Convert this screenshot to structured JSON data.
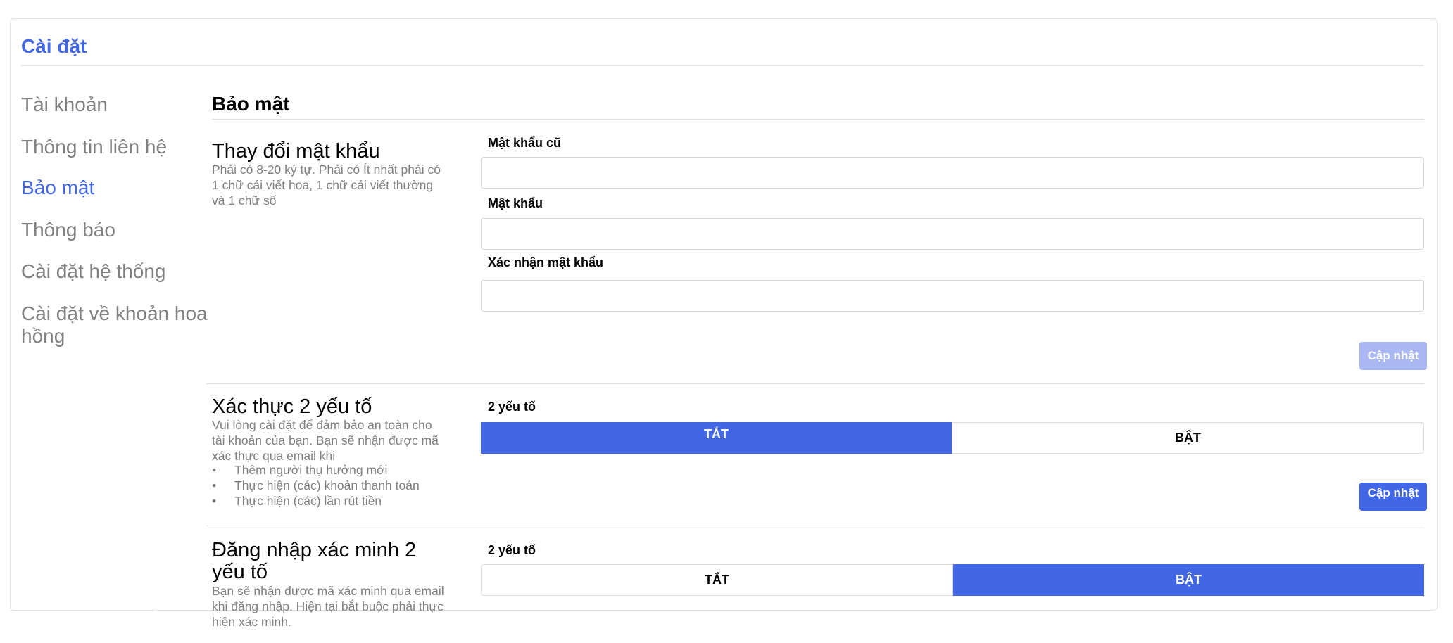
{
  "page": {
    "title": "Cài đặt"
  },
  "nav": {
    "items": [
      {
        "label": "Tài khoản"
      },
      {
        "label": "Thông tin liên hệ"
      },
      {
        "label": "Bảo mật"
      },
      {
        "label": "Thông báo"
      },
      {
        "label": "Cài đặt hệ thống"
      },
      {
        "label": "Cài đặt về khoản hoa hồng"
      }
    ],
    "active_item": "Bảo mật"
  },
  "security": {
    "title": "Bảo mật",
    "password_section": {
      "heading": "Thay đổi mật khẩu",
      "description": "Phải có 8-20 ký tự. Phải có Ít nhất phải có 1 chữ cái viết hoa, 1 chữ cái viết thường và 1 chữ số",
      "fields": [
        {
          "label": "Mật khẩu cũ",
          "value": "",
          "placeholder": ""
        },
        {
          "label": "Mật khẩu",
          "value": "",
          "placeholder": ""
        },
        {
          "label": "Xác nhận mật khẩu",
          "value": "",
          "placeholder": ""
        }
      ],
      "update_button": "Cập nhật"
    },
    "two_factor_section": {
      "heading": "Xác thực 2 yếu tố",
      "description": "Vui lòng cài đặt để đảm bảo an toàn cho tài khoản của bạn. Bạn sẽ nhận được mã xác thực qua email khi",
      "bullets": [
        "Thêm người thụ hưởng mới",
        "Thực hiện (các) khoản thanh toán",
        "Thực hiện (các) lần rút tiền"
      ],
      "toggle_label": "2 yếu tố",
      "off_label": "TẮT",
      "on_label": "BẬT",
      "selected": "TẮT",
      "update_button": "Cập nhật"
    },
    "login_verification_section": {
      "heading": "Đăng nhập xác minh 2 yếu tố",
      "description": "Bạn sẽ nhận được mã xác minh qua email khi đăng nhập. Hiện tại bắt buộc phải thực hiện xác minh.",
      "toggle_label": "2 yếu tố",
      "off_label": "TẮT",
      "on_label": "BẬT",
      "selected": "BẬT"
    }
  },
  "colors": {
    "accent": "#4267e6",
    "accent_disabled": "#a9b8f2",
    "muted_text": "#808080",
    "divider": "#dcdcdc"
  }
}
